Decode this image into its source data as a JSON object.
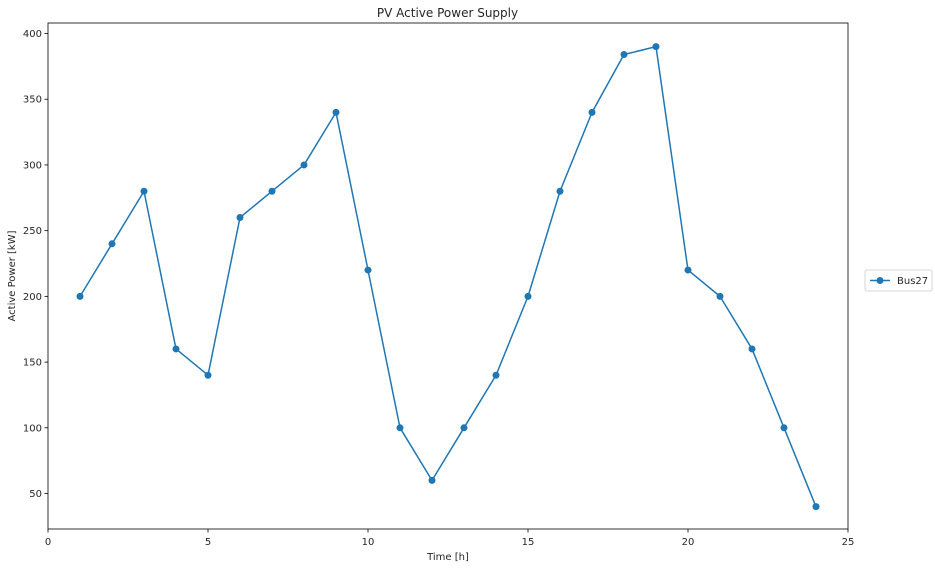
{
  "chart_data": {
    "type": "line",
    "title": "PV Active Power Supply",
    "xlabel": "Time [h]",
    "ylabel": "Active Power [kW]",
    "xlim": [
      0,
      25
    ],
    "ylim": [
      23,
      408
    ],
    "xticks": [
      0,
      5,
      10,
      15,
      20,
      25
    ],
    "yticks": [
      50,
      100,
      150,
      200,
      250,
      300,
      350,
      400
    ],
    "grid": false,
    "legend_position": "center-right-outside",
    "series": [
      {
        "name": "Bus27",
        "color": "#1f77b4",
        "marker": "circle",
        "x": [
          1,
          2,
          3,
          4,
          5,
          6,
          7,
          8,
          9,
          10,
          11,
          12,
          13,
          14,
          15,
          16,
          17,
          18,
          19,
          20,
          21,
          22,
          23,
          24
        ],
        "y": [
          200,
          240,
          280,
          160,
          140,
          260,
          280,
          300,
          340,
          220,
          100,
          60,
          100,
          140,
          200,
          280,
          340,
          384,
          390,
          220,
          200,
          160,
          100,
          40
        ]
      }
    ]
  }
}
